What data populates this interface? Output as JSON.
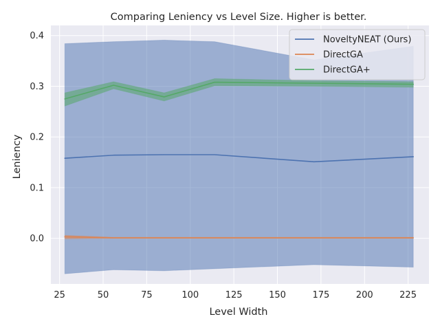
{
  "chart_data": {
    "type": "line",
    "title": "Comparing Leniency  vs Level Size. Higher is better.",
    "xlabel": "Level Width",
    "ylabel": "Leniency",
    "xlim": [
      20,
      237
    ],
    "ylim": [
      -0.09,
      0.42
    ],
    "xticks": [
      25,
      50,
      75,
      100,
      125,
      150,
      175,
      200,
      225
    ],
    "yticks": [
      0.0,
      0.1,
      0.2,
      0.3,
      0.4
    ],
    "ytick_labels": [
      "0.0",
      "0.1",
      "0.2",
      "0.3",
      "0.4"
    ],
    "grid": true,
    "legend_position": "top-right",
    "background_color": "#eaeaf2",
    "x": [
      28,
      56,
      85,
      114,
      171,
      228
    ],
    "series": [
      {
        "name": "NoveltyNEAT (Ours)",
        "color": "#4c72b0",
        "values": [
          0.158,
          0.164,
          0.165,
          0.165,
          0.151,
          0.161
        ],
        "lower": [
          -0.07,
          -0.062,
          -0.064,
          -0.06,
          -0.052,
          -0.057
        ],
        "upper": [
          0.384,
          0.388,
          0.391,
          0.388,
          0.352,
          0.379
        ]
      },
      {
        "name": "DirectGA",
        "color": "#dd8452",
        "values": [
          0.003,
          0.001,
          0.001,
          0.001,
          0.001,
          0.001
        ],
        "lower": [
          -0.001,
          0.0,
          0.0,
          0.0,
          0.0,
          0.0
        ],
        "upper": [
          0.006,
          0.002,
          0.002,
          0.002,
          0.002,
          0.002
        ]
      },
      {
        "name": "DirectGA+",
        "color": "#55a868",
        "values": [
          0.275,
          0.302,
          0.279,
          0.308,
          0.306,
          0.304
        ],
        "lower": [
          0.261,
          0.295,
          0.271,
          0.301,
          0.3,
          0.298
        ],
        "upper": [
          0.287,
          0.309,
          0.287,
          0.315,
          0.311,
          0.309
        ]
      }
    ]
  }
}
